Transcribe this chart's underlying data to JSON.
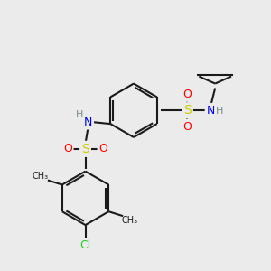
{
  "background_color": "#ebebeb",
  "bond_color": "#1a1a1a",
  "atom_colors": {
    "S": "#cccc00",
    "O": "#ff0000",
    "N": "#0000ee",
    "H": "#778888",
    "Cl": "#22cc22",
    "C": "#1a1a1a"
  },
  "figsize": [
    3.0,
    3.0
  ],
  "dpi": 100
}
